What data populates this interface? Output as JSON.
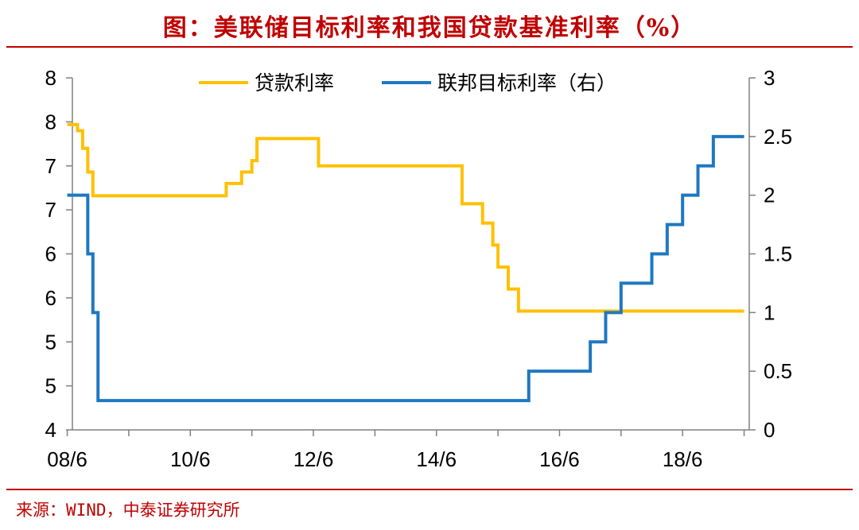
{
  "header": {
    "title": "图：美联储目标利率和我国贷款基准利率（%）"
  },
  "footer": {
    "source": "来源：WIND，中泰证券研究所"
  },
  "chart_data": {
    "type": "line",
    "title": "图：美联储目标利率和我国贷款基准利率（%）",
    "x_tick_labels": [
      "08/6",
      "10/6",
      "12/6",
      "14/6",
      "16/6",
      "18/6"
    ],
    "y_left": {
      "ticks": [
        4,
        4.5,
        5,
        5.5,
        6,
        6.5,
        7,
        7.5,
        8,
        8.5
      ],
      "tick_labels": [
        "4",
        "5",
        "5",
        "6",
        "6",
        "7",
        "7",
        "8",
        "8"
      ],
      "range": [
        4,
        8
      ]
    },
    "y_right": {
      "ticks": [
        0,
        0.5,
        1,
        1.5,
        2,
        2.5,
        3
      ],
      "tick_labels": [
        "0",
        "0.5",
        "1",
        "1.5",
        "2",
        "2.5",
        "3"
      ],
      "range": [
        0,
        3
      ]
    },
    "legend": {
      "placement": "top",
      "entries": [
        "贷款利率",
        "联邦目标利率（右）"
      ]
    },
    "colors": {
      "loan": "#ffc000",
      "fed": "#1f78c1"
    },
    "series": [
      {
        "name": "贷款利率",
        "axis": "left",
        "color": "#ffc000",
        "points": [
          [
            "2008-06",
            7.47
          ],
          [
            "2008-07",
            7.47
          ],
          [
            "2008-08",
            7.4
          ],
          [
            "2008-09",
            7.2
          ],
          [
            "2008-10",
            6.93
          ],
          [
            "2008-11",
            6.66
          ],
          [
            "2008-12",
            6.66
          ],
          [
            "2009-06",
            6.66
          ],
          [
            "2010-06",
            6.66
          ],
          [
            "2010-10",
            6.66
          ],
          [
            "2011-01",
            6.8
          ],
          [
            "2011-02",
            6.8
          ],
          [
            "2011-04",
            6.93
          ],
          [
            "2011-06",
            7.06
          ],
          [
            "2011-07",
            7.31
          ],
          [
            "2011-10",
            7.31
          ],
          [
            "2012-06",
            7.31
          ],
          [
            "2012-07",
            7.0
          ],
          [
            "2013-06",
            7.0
          ],
          [
            "2014-06",
            7.0
          ],
          [
            "2014-11",
            6.57
          ],
          [
            "2015-03",
            6.35
          ],
          [
            "2015-05",
            6.1
          ],
          [
            "2015-06",
            5.85
          ],
          [
            "2015-08",
            5.6
          ],
          [
            "2015-10",
            5.35
          ],
          [
            "2016-06",
            5.35
          ],
          [
            "2019-06",
            5.35
          ]
        ]
      },
      {
        "name": "联邦目标利率（右）",
        "axis": "right",
        "color": "#1f78c1",
        "points": [
          [
            "2008-06",
            2.0
          ],
          [
            "2008-09",
            2.0
          ],
          [
            "2008-10",
            1.5
          ],
          [
            "2008-11",
            1.0
          ],
          [
            "2008-12",
            0.25
          ],
          [
            "2010-06",
            0.25
          ],
          [
            "2012-06",
            0.25
          ],
          [
            "2014-06",
            0.25
          ],
          [
            "2015-12",
            0.5
          ],
          [
            "2016-06",
            0.5
          ],
          [
            "2016-12",
            0.75
          ],
          [
            "2017-03",
            1.0
          ],
          [
            "2017-06",
            1.25
          ],
          [
            "2017-12",
            1.5
          ],
          [
            "2018-03",
            1.75
          ],
          [
            "2018-06",
            2.0
          ],
          [
            "2018-09",
            2.25
          ],
          [
            "2018-12",
            2.5
          ],
          [
            "2019-06",
            2.5
          ]
        ]
      }
    ]
  }
}
